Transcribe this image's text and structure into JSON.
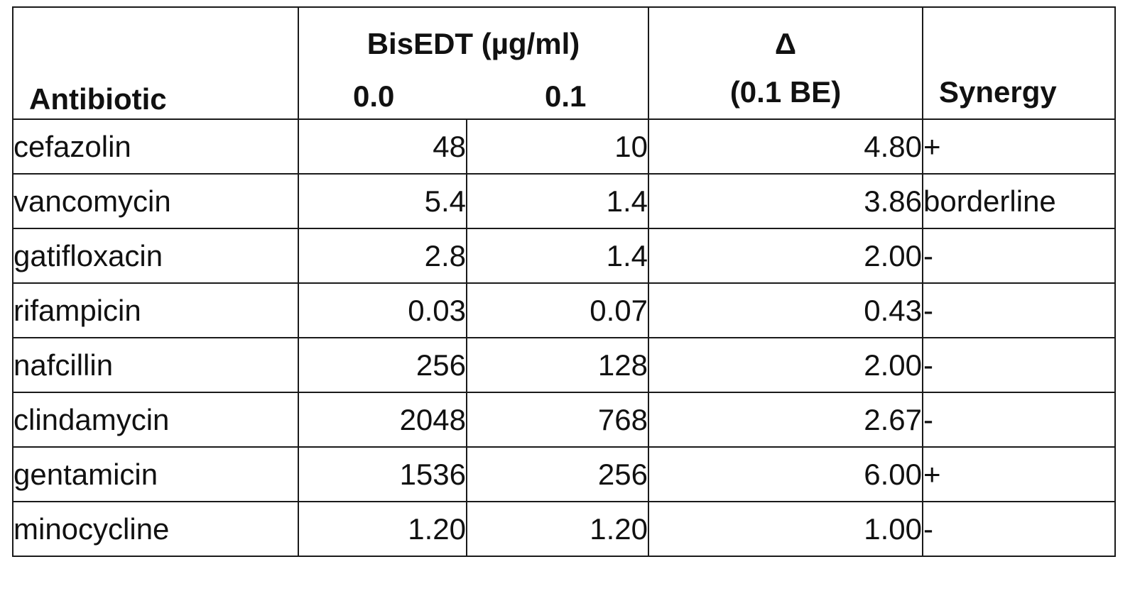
{
  "table": {
    "header": {
      "antibiotic": "Antibiotic",
      "bisedt_title": "BisEDT (µg/ml)",
      "conc_0": "0.0",
      "conc_1": "0.1",
      "delta_symbol": "Δ",
      "delta_sub": "(0.1 BE)",
      "synergy": "Synergy"
    },
    "rows": [
      {
        "antibiotic": "cefazolin",
        "c0": "48",
        "c1": "10",
        "delta": "4.80",
        "synergy": "+"
      },
      {
        "antibiotic": "vancomycin",
        "c0": "5.4",
        "c1": "1.4",
        "delta": "3.86",
        "synergy": "borderline"
      },
      {
        "antibiotic": "gatifloxacin",
        "c0": "2.8",
        "c1": "1.4",
        "delta": "2.00",
        "synergy": "-"
      },
      {
        "antibiotic": "rifampicin",
        "c0": "0.03",
        "c1": "0.07",
        "delta": "0.43",
        "synergy": "-"
      },
      {
        "antibiotic": "nafcillin",
        "c0": "256",
        "c1": "128",
        "delta": "2.00",
        "synergy": "-"
      },
      {
        "antibiotic": "clindamycin",
        "c0": "2048",
        "c1": "768",
        "delta": "2.67",
        "synergy": "-"
      },
      {
        "antibiotic": "gentamicin",
        "c0": "1536",
        "c1": "256",
        "delta": "6.00",
        "synergy": "+"
      },
      {
        "antibiotic": "minocycline",
        "c0": "1.20",
        "c1": "1.20",
        "delta": "1.00",
        "synergy": "-"
      }
    ]
  }
}
